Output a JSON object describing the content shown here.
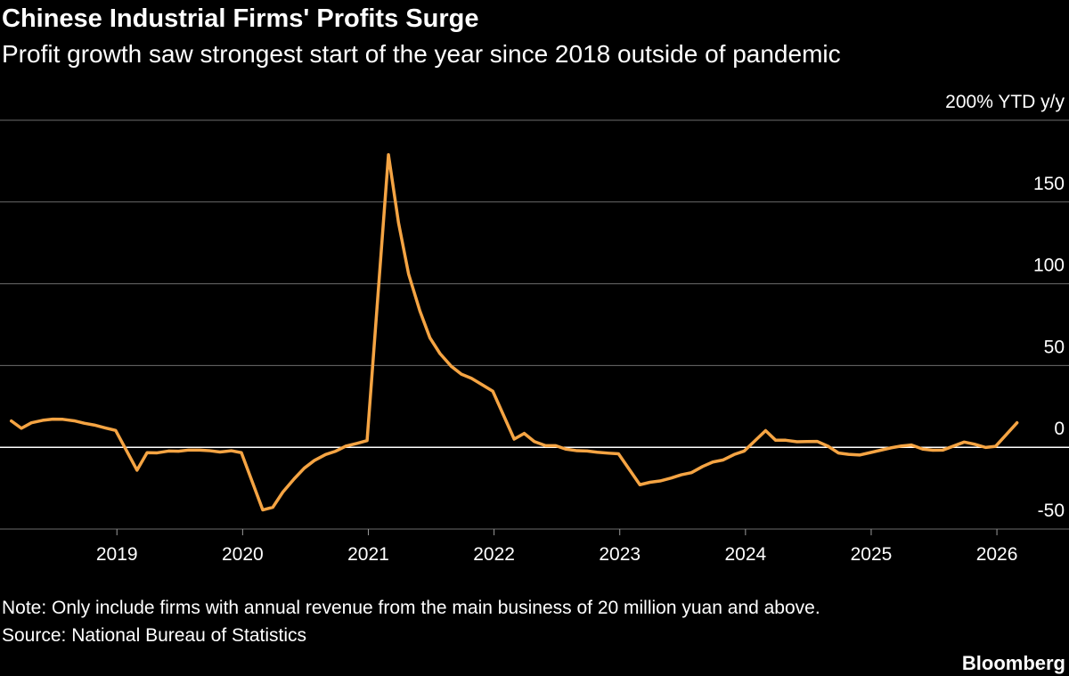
{
  "chart_data": {
    "type": "line",
    "title": "Chinese Industrial Firms' Profits Surge",
    "subtitle": "Profit growth saw strongest start of the year since 2018 outside of pandemic",
    "note": "Note: Only include firms with annual revenue from the main business of 20 million yuan and above.",
    "source": "Source: National Bureau of Statistics",
    "brand": "Bloomberg",
    "x": [
      2018.16,
      2018.24,
      2018.32,
      2018.41,
      2018.49,
      2018.57,
      2018.66,
      2018.74,
      2018.82,
      2018.91,
      2018.99,
      2019.16,
      2019.24,
      2019.32,
      2019.41,
      2019.49,
      2019.57,
      2019.66,
      2019.74,
      2019.82,
      2019.91,
      2019.99,
      2020.16,
      2020.24,
      2020.32,
      2020.41,
      2020.49,
      2020.57,
      2020.66,
      2020.74,
      2020.82,
      2020.91,
      2020.99,
      2021.16,
      2021.24,
      2021.32,
      2021.41,
      2021.49,
      2021.57,
      2021.66,
      2021.74,
      2021.82,
      2021.91,
      2021.99,
      2022.16,
      2022.24,
      2022.32,
      2022.41,
      2022.49,
      2022.57,
      2022.66,
      2022.74,
      2022.82,
      2022.91,
      2022.99,
      2023.16,
      2023.24,
      2023.32,
      2023.41,
      2023.49,
      2023.57,
      2023.66,
      2023.74,
      2023.82,
      2023.91,
      2023.99,
      2024.16,
      2024.24,
      2024.32,
      2024.41,
      2024.49,
      2024.57,
      2024.66,
      2024.74,
      2024.82,
      2024.91,
      2024.99,
      2025.16,
      2025.24,
      2025.32,
      2025.41,
      2025.49,
      2025.57,
      2025.66,
      2025.74,
      2025.82,
      2025.91,
      2025.99,
      2026.16
    ],
    "series": [
      {
        "color": "#f5a443",
        "values": [
          16.1,
          11.6,
          15.0,
          16.5,
          17.2,
          17.1,
          16.2,
          14.7,
          13.6,
          11.8,
          10.3,
          -14.0,
          -3.3,
          -3.4,
          -2.3,
          -2.4,
          -1.7,
          -1.7,
          -2.1,
          -2.9,
          -2.1,
          -3.3,
          -38.3,
          -36.7,
          -27.4,
          -19.3,
          -12.8,
          -8.1,
          -4.4,
          -2.4,
          0.7,
          2.4,
          4.1,
          178.9,
          137.3,
          106.0,
          83.4,
          66.9,
          57.3,
          49.5,
          44.7,
          42.2,
          38.0,
          34.3,
          5.0,
          8.5,
          3.5,
          1.0,
          1.0,
          -1.1,
          -2.1,
          -2.3,
          -3.0,
          -3.6,
          -4.0,
          -22.9,
          -21.4,
          -20.6,
          -18.8,
          -16.8,
          -15.5,
          -11.7,
          -9.0,
          -7.8,
          -4.4,
          -2.3,
          10.2,
          4.3,
          4.3,
          3.4,
          3.5,
          3.6,
          0.5,
          -3.5,
          -4.3,
          -4.7,
          -3.3,
          -0.3,
          0.8,
          1.4,
          -1.1,
          -1.8,
          -1.7,
          0.9,
          3.2,
          1.9,
          -0.1,
          0.6,
          15.0
        ]
      }
    ],
    "xlim": [
      2018.07,
      2026.29
    ],
    "xticks": [
      2019,
      2020,
      2021,
      2022,
      2023,
      2024,
      2025,
      2026
    ],
    "ylim": [
      -50,
      200
    ],
    "yticks": [
      -50,
      0,
      50,
      100,
      150,
      {
        "value": 200,
        "label": "200% YTD y/y"
      }
    ],
    "grid": true
  }
}
